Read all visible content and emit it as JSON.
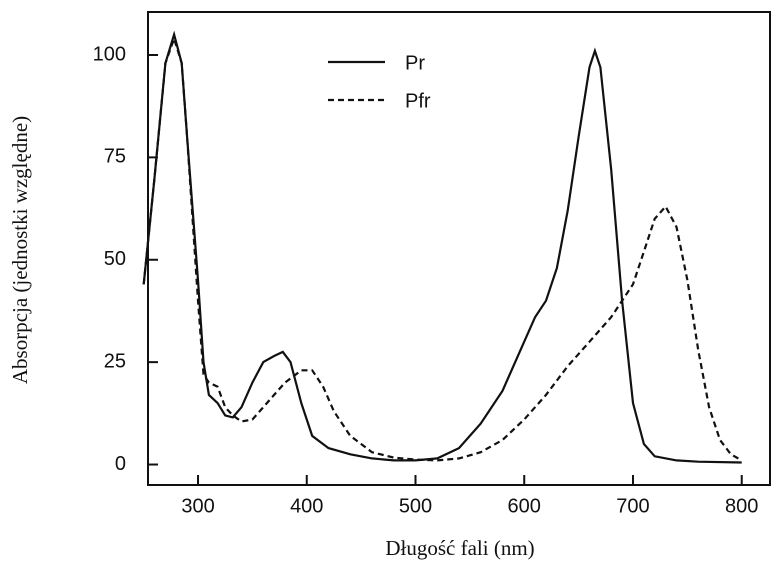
{
  "chart_data": {
    "type": "line",
    "xlabel": "Długość fali (nm)",
    "ylabel": "Absorpcja  (jednostki względne)",
    "xlim": [
      254,
      826
    ],
    "ylim": [
      -5,
      110.5
    ],
    "xticks": [
      300,
      400,
      500,
      600,
      700,
      800
    ],
    "yticks": [
      0,
      25,
      50,
      75,
      100
    ],
    "legend": "top-center",
    "series": [
      {
        "name": "Pr",
        "color": "#111",
        "dash": "solid",
        "x": [
          250,
          260,
          270,
          278,
          285,
          290,
          300,
          305,
          310,
          318,
          325,
          332,
          340,
          350,
          360,
          370,
          378,
          385,
          395,
          405,
          420,
          440,
          460,
          480,
          500,
          520,
          540,
          560,
          580,
          600,
          610,
          620,
          630,
          640,
          650,
          660,
          665,
          670,
          680,
          690,
          700,
          710,
          720,
          740,
          760,
          800
        ],
        "values": [
          44,
          70,
          98,
          105,
          98,
          80,
          45,
          25,
          17,
          15,
          12,
          11.5,
          14,
          20,
          25,
          26.5,
          27.5,
          25,
          15,
          7,
          4,
          2.5,
          1.5,
          1,
          1,
          1.5,
          4,
          10,
          18,
          30,
          36,
          40,
          48,
          62,
          80,
          97,
          101,
          97,
          72,
          40,
          15,
          5,
          2,
          1,
          0.7,
          0.5
        ]
      },
      {
        "name": "Pfr",
        "color": "#111",
        "dash": "dashed",
        "x": [
          250,
          260,
          270,
          278,
          285,
          290,
          300,
          305,
          310,
          318,
          325,
          332,
          340,
          350,
          360,
          370,
          380,
          395,
          405,
          415,
          425,
          440,
          460,
          480,
          500,
          520,
          540,
          560,
          580,
          600,
          620,
          640,
          660,
          680,
          700,
          710,
          720,
          730,
          740,
          750,
          760,
          770,
          780,
          790,
          800
        ],
        "values": [
          44,
          70,
          98,
          104,
          98,
          80,
          40,
          22,
          20,
          19,
          14,
          12,
          10.5,
          11,
          14,
          17,
          20,
          23,
          23,
          19,
          13,
          7,
          3,
          1.7,
          1.2,
          1,
          1.5,
          3,
          6,
          11,
          17,
          24,
          30,
          36,
          44,
          52,
          60,
          63,
          58,
          45,
          28,
          14,
          6,
          2.5,
          1
        ]
      }
    ]
  }
}
